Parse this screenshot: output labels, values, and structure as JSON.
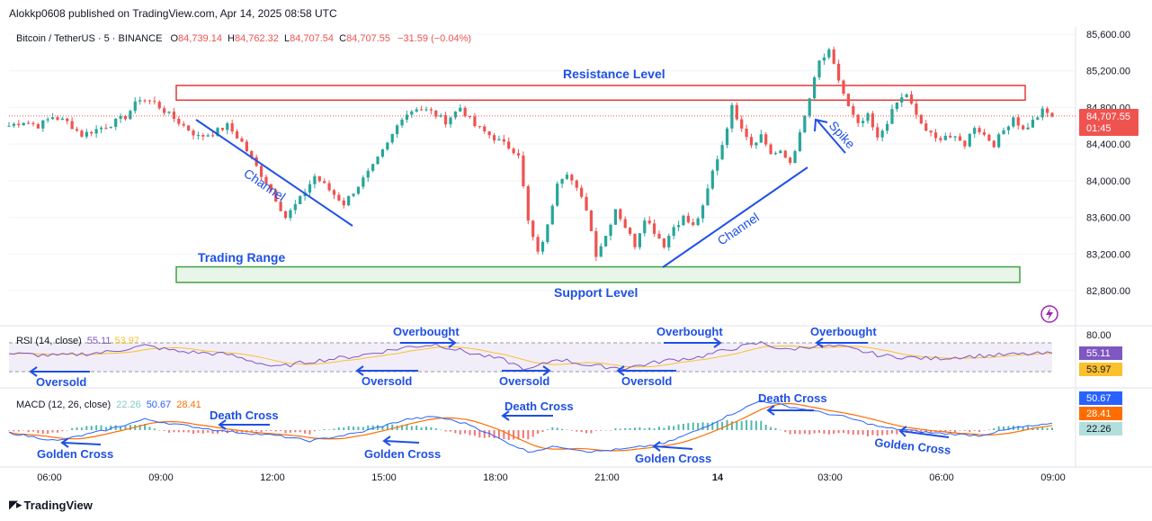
{
  "header": {
    "publisher": "Alokkp0608 published on TradingView.com, Apr 14, 2025 08:58 UTC"
  },
  "symbol": {
    "name": "Bitcoin / TetherUS · 5 · BINANCE",
    "o_label": "O",
    "o": "84,739.14",
    "h_label": "H",
    "h": "84,762.32",
    "l_label": "L",
    "l": "84,707.54",
    "c_label": "C",
    "c": "84,707.55",
    "change": "−31.59 (−0.04%)"
  },
  "price_tag": {
    "value": "84,707.55",
    "countdown": "01:45"
  },
  "colors": {
    "up": "#26a69a",
    "down": "#ef5350",
    "annotation": "#1e50e6",
    "resistance": "#e53935",
    "support": "#43a047",
    "rsi": "#7e57c2",
    "rsi_ma": "#fbc02d",
    "macd": "#2962ff",
    "signal": "#ff6d00"
  },
  "annotations": {
    "resistance": "Resistance Level",
    "support": "Support Level",
    "range": "Trading Range",
    "channel1": "Channel",
    "channel2": "Channel",
    "spike": "Spike",
    "overbought": [
      "Overbought",
      "Overbought",
      "Overbought"
    ],
    "oversold": [
      "Oversold",
      "Oversold",
      "Oversold",
      "Oversold"
    ],
    "death_cross": [
      "Death Cross",
      "Death Cross",
      "Death Cross"
    ],
    "golden_cross": [
      "Golden Cross",
      "Golden Cross",
      "Golden Cross",
      "Golden Cross"
    ]
  },
  "rsi": {
    "label": "RSI (14, close)",
    "v1": "55.11",
    "v2": "53.97",
    "tag_level": "80.00",
    "tag1": "55.11",
    "tag2": "53.97"
  },
  "macd": {
    "label": "MACD (12, 26, close)",
    "v1": "22.26",
    "v2": "50.67",
    "v3": "28.41",
    "tag1": "50.67",
    "tag2": "28.41",
    "tag3": "22.26"
  },
  "chart_data": {
    "type": "candlestick",
    "symbol": "Bitcoin / TetherUS",
    "interval": "5",
    "exchange": "BINANCE",
    "y_ticks": [
      "85,600.00",
      "85,200.00",
      "84,800.00",
      "84,400.00",
      "84,000.00",
      "83,600.00",
      "83,200.00",
      "82,800.00"
    ],
    "y_tick_values": [
      85600,
      85200,
      84800,
      84400,
      84000,
      83600,
      83200,
      82800
    ],
    "x_ticks": [
      "06:00",
      "09:00",
      "12:00",
      "15:00",
      "18:00",
      "21:00",
      "14",
      "03:00",
      "06:00",
      "09:00"
    ],
    "ylim": [
      82600,
      85700
    ],
    "resistance_zone": [
      84880,
      85040
    ],
    "support_zone": [
      82890,
      83060
    ],
    "current_price": 84707.55,
    "close_path": [
      [
        0,
        84600
      ],
      [
        3,
        84650
      ],
      [
        6,
        84600
      ],
      [
        9,
        84700
      ],
      [
        12,
        84640
      ],
      [
        15,
        84500
      ],
      [
        18,
        84560
      ],
      [
        21,
        84620
      ],
      [
        24,
        84700
      ],
      [
        27,
        84900
      ],
      [
        30,
        84850
      ],
      [
        33,
        84720
      ],
      [
        36,
        84600
      ],
      [
        39,
        84480
      ],
      [
        42,
        84520
      ],
      [
        45,
        84600
      ],
      [
        48,
        84420
      ],
      [
        51,
        84150
      ],
      [
        54,
        83900
      ],
      [
        57,
        83600
      ],
      [
        60,
        83800
      ],
      [
        63,
        84050
      ],
      [
        66,
        83900
      ],
      [
        69,
        83750
      ],
      [
        72,
        83950
      ],
      [
        75,
        84150
      ],
      [
        78,
        84400
      ],
      [
        81,
        84700
      ],
      [
        84,
        84800
      ],
      [
        87,
        84750
      ],
      [
        90,
        84650
      ],
      [
        93,
        84800
      ],
      [
        96,
        84600
      ],
      [
        99,
        84500
      ],
      [
        102,
        84400
      ],
      [
        105,
        84300
      ],
      [
        107,
        83550
      ],
      [
        109,
        83200
      ],
      [
        111,
        83500
      ],
      [
        113,
        84000
      ],
      [
        115,
        84100
      ],
      [
        117,
        83900
      ],
      [
        119,
        83700
      ],
      [
        121,
        83200
      ],
      [
        123,
        83400
      ],
      [
        125,
        83700
      ],
      [
        127,
        83500
      ],
      [
        129,
        83300
      ],
      [
        131,
        83600
      ],
      [
        133,
        83450
      ],
      [
        135,
        83300
      ],
      [
        137,
        83500
      ],
      [
        139,
        83600
      ],
      [
        141,
        83500
      ],
      [
        143,
        83700
      ],
      [
        145,
        84100
      ],
      [
        147,
        84400
      ],
      [
        149,
        84800
      ],
      [
        151,
        84600
      ],
      [
        153,
        84400
      ],
      [
        155,
        84500
      ],
      [
        157,
        84300
      ],
      [
        159,
        84300
      ],
      [
        161,
        84200
      ],
      [
        163,
        84500
      ],
      [
        165,
        84900
      ],
      [
        167,
        85300
      ],
      [
        169,
        85400
      ],
      [
        171,
        85100
      ],
      [
        173,
        84800
      ],
      [
        175,
        84600
      ],
      [
        177,
        84700
      ],
      [
        179,
        84450
      ],
      [
        181,
        84650
      ],
      [
        183,
        84850
      ],
      [
        185,
        84950
      ],
      [
        187,
        84700
      ],
      [
        189,
        84550
      ],
      [
        191,
        84450
      ],
      [
        193,
        84500
      ],
      [
        195,
        84450
      ],
      [
        197,
        84400
      ],
      [
        199,
        84600
      ],
      [
        201,
        84500
      ],
      [
        203,
        84400
      ],
      [
        205,
        84550
      ],
      [
        207,
        84700
      ],
      [
        209,
        84550
      ],
      [
        211,
        84650
      ],
      [
        213,
        84760
      ],
      [
        215,
        84707
      ]
    ],
    "rsi_line": [
      [
        0,
        55
      ],
      [
        10,
        52
      ],
      [
        20,
        57
      ],
      [
        28,
        66
      ],
      [
        35,
        58
      ],
      [
        45,
        54
      ],
      [
        55,
        36
      ],
      [
        62,
        44
      ],
      [
        72,
        52
      ],
      [
        82,
        64
      ],
      [
        88,
        68
      ],
      [
        95,
        56
      ],
      [
        102,
        46
      ],
      [
        107,
        32
      ],
      [
        113,
        48
      ],
      [
        120,
        38
      ],
      [
        127,
        35
      ],
      [
        135,
        45
      ],
      [
        142,
        50
      ],
      [
        149,
        62
      ],
      [
        155,
        70
      ],
      [
        160,
        60
      ],
      [
        166,
        66
      ],
      [
        172,
        64
      ],
      [
        180,
        52
      ],
      [
        190,
        48
      ],
      [
        200,
        52
      ],
      [
        208,
        54
      ],
      [
        215,
        55.11
      ]
    ],
    "macd_line": [
      [
        0,
        -10
      ],
      [
        10,
        -40
      ],
      [
        20,
        0
      ],
      [
        28,
        40
      ],
      [
        35,
        20
      ],
      [
        45,
        -5
      ],
      [
        55,
        -20
      ],
      [
        62,
        -40
      ],
      [
        72,
        -10
      ],
      [
        82,
        40
      ],
      [
        88,
        50
      ],
      [
        95,
        20
      ],
      [
        102,
        -40
      ],
      [
        107,
        -80
      ],
      [
        113,
        -60
      ],
      [
        120,
        -80
      ],
      [
        127,
        -70
      ],
      [
        135,
        -50
      ],
      [
        142,
        0
      ],
      [
        149,
        60
      ],
      [
        155,
        110
      ],
      [
        160,
        90
      ],
      [
        166,
        70
      ],
      [
        172,
        50
      ],
      [
        180,
        10
      ],
      [
        190,
        -10
      ],
      [
        200,
        -20
      ],
      [
        208,
        10
      ],
      [
        215,
        22.26
      ]
    ]
  },
  "footer": {
    "logo": "TradingView"
  }
}
